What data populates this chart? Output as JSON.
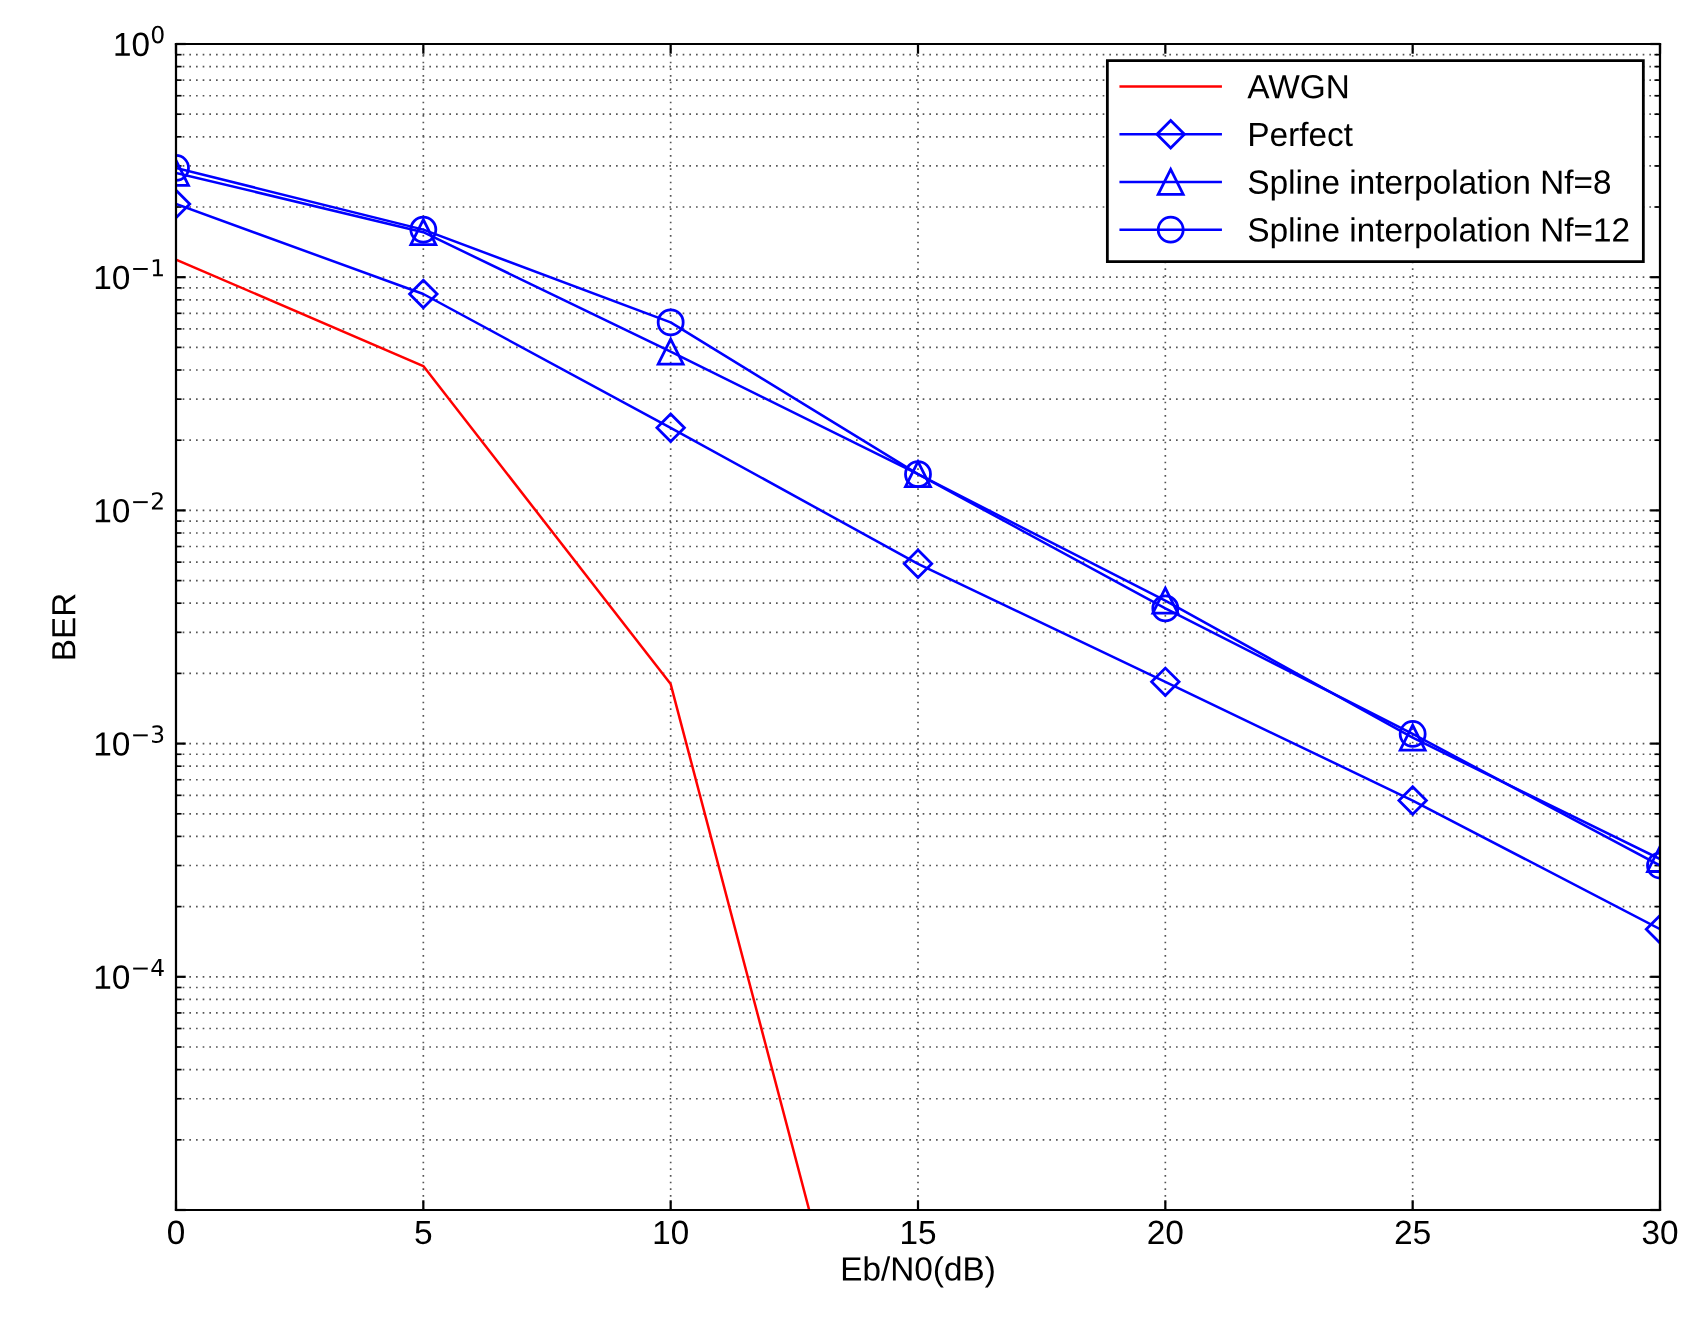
{
  "chart_data": {
    "type": "line",
    "xlabel": "Eb/N0(dB)",
    "ylabel": "BER",
    "log": "y",
    "xlim": [
      0,
      30
    ],
    "xticks": [
      0,
      5,
      10,
      15,
      20,
      25,
      30
    ],
    "ylim": [
      1e-05,
      1
    ],
    "yticks": [
      {
        "value": 1e-05,
        "label": null
      },
      {
        "value": 0.0001,
        "label": "10$^{−4}$"
      },
      {
        "value": 0.001,
        "label": "10$^{−3}$"
      },
      {
        "value": 0.01,
        "label": "10$^{−2}$"
      },
      {
        "value": 0.1,
        "label": "10$^{−1}$"
      },
      {
        "value": 1,
        "label": "10$^{0}$"
      }
    ],
    "grid": true,
    "legend": "top right",
    "line_style": "solid",
    "series": [
      {
        "name": "AWGN",
        "color": "#ff0000",
        "marker": "none",
        "x": [
          0,
          5,
          10,
          12.8
        ],
        "values": [
          0.119,
          0.0416,
          0.0018,
          1e-05
        ]
      },
      {
        "name": "Perfect",
        "color": "#0000ff",
        "marker": "diamond",
        "x": [
          0,
          5,
          10,
          15,
          20,
          25,
          30
        ],
        "values": [
          0.206,
          0.0847,
          0.0226,
          0.0059,
          0.00184,
          0.00057,
          0.00016
        ]
      },
      {
        "name": "Spline interpolation Nf=8",
        "color": "#0000ff",
        "marker": "triangle",
        "x": [
          0,
          5,
          10,
          15,
          20,
          25,
          30
        ],
        "values": [
          0.28,
          0.156,
          0.048,
          0.0143,
          0.0041,
          0.00106,
          0.00032
        ]
      },
      {
        "name": "Spline interpolation Nf=12",
        "color": "#0000ff",
        "marker": "circle",
        "x": [
          0,
          5,
          10,
          15,
          20,
          25,
          30
        ],
        "values": [
          0.294,
          0.16,
          0.064,
          0.0143,
          0.0038,
          0.0011,
          0.0003
        ]
      }
    ]
  }
}
